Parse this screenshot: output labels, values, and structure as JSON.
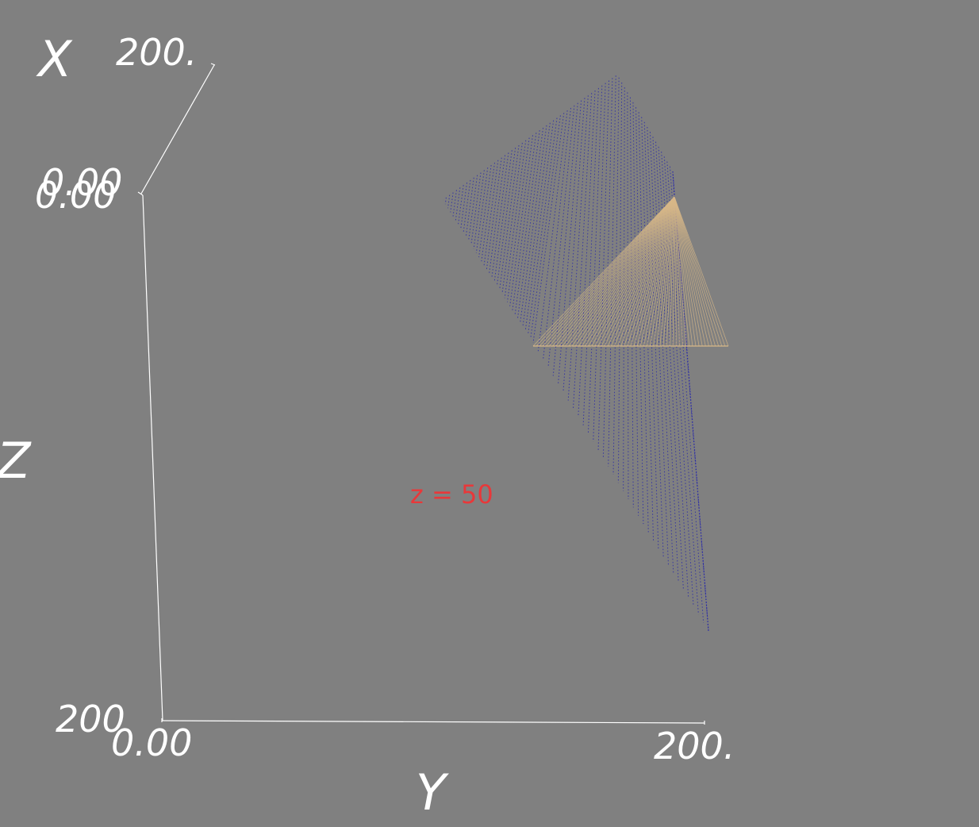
{
  "scene": {
    "background": "#808080",
    "axis_color": "#ffffff",
    "axes": {
      "x": {
        "name": "X",
        "min_label": "0.00",
        "max_label": "200."
      },
      "y": {
        "name": "Y",
        "min_label": "0.00",
        "max_label": "200."
      },
      "z": {
        "name": "Z",
        "min_label": "0.00",
        "max_label": "200"
      }
    },
    "annotation": {
      "text": "z = 50",
      "color": "#e8383a"
    },
    "surfaces": [
      {
        "name": "blue-dotted-surface",
        "color": "#2a2aa8",
        "style": "dotted"
      },
      {
        "name": "tan-line-surface",
        "color": "#d8b888",
        "style": "lines"
      }
    ]
  }
}
